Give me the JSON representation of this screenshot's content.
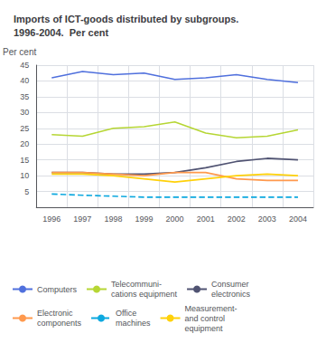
{
  "chart_data": {
    "type": "line",
    "title": "Imports of ICT-goods distributed by subgroups.\n1996-2004.  Per cent",
    "ylabel": "Per cent",
    "categories": [
      "1996",
      "1997",
      "1998",
      "1999",
      "2000",
      "2001",
      "2002",
      "2003",
      "2004"
    ],
    "series": [
      {
        "name": "Computers",
        "values": [
          41.0,
          43.0,
          42.0,
          42.5,
          40.5,
          41.0,
          42.0,
          40.5,
          39.5
        ]
      },
      {
        "name": "Telecommuni-\ncations equipment",
        "values": [
          23.0,
          22.5,
          25.0,
          25.5,
          27.0,
          23.5,
          22.0,
          22.5,
          24.5
        ]
      },
      {
        "name": "Consumer\nelectronics",
        "values": [
          11.0,
          11.0,
          10.5,
          10.5,
          11.0,
          12.5,
          14.5,
          15.5,
          15.0
        ]
      },
      {
        "name": "Electronic\ncomponents",
        "values": [
          11.0,
          11.0,
          10.5,
          10.0,
          11.0,
          11.0,
          9.0,
          8.5,
          8.5
        ]
      },
      {
        "name": "Office\nmachines",
        "line_style": "dashed",
        "values": [
          4.2,
          3.8,
          3.5,
          3.2,
          3.2,
          3.2,
          3.2,
          3.2,
          3.2
        ]
      },
      {
        "name": "Measurement-\nand control\nequipment",
        "values": [
          10.5,
          10.5,
          10.0,
          9.0,
          8.0,
          9.0,
          10.0,
          10.5,
          10.0
        ]
      }
    ],
    "ylim": [
      0,
      45
    ],
    "yticks": [
      5,
      10,
      15,
      20,
      25,
      30,
      35,
      40,
      45
    ],
    "grid": true,
    "legend": "bottom"
  }
}
